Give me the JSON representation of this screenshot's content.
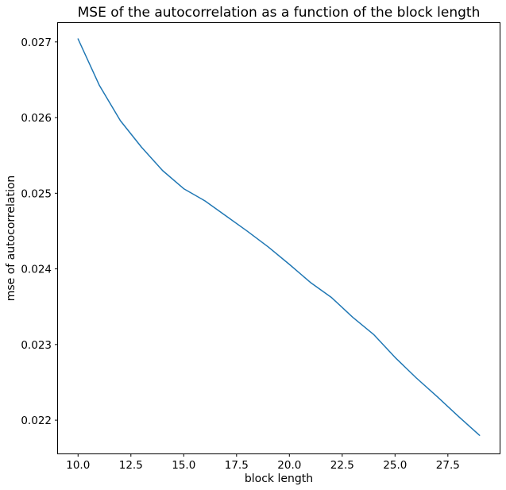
{
  "chart_data": {
    "type": "line",
    "title": "MSE of the autocorrelation as a function of the block length",
    "xlabel": "block length",
    "ylabel": "mse of autocorrelation",
    "xlim": [
      9.05,
      29.95
    ],
    "ylim": [
      0.02156,
      0.02725
    ],
    "grid": false,
    "x_ticks": [
      10.0,
      12.5,
      15.0,
      17.5,
      20.0,
      22.5,
      25.0,
      27.5
    ],
    "x_tick_labels": [
      "10.0",
      "12.5",
      "15.0",
      "17.5",
      "20.0",
      "22.5",
      "25.0",
      "27.5"
    ],
    "y_ticks": [
      0.022,
      0.023,
      0.024,
      0.025,
      0.026,
      0.027
    ],
    "y_tick_labels": [
      "0.022",
      "0.023",
      "0.024",
      "0.025",
      "0.026",
      "0.027"
    ],
    "series": [
      {
        "color": "#1f77b4",
        "x": [
          10,
          11,
          12,
          13,
          14,
          15,
          16,
          17,
          18,
          19,
          20,
          21,
          22,
          23,
          24,
          25,
          26,
          27,
          28,
          29
        ],
        "values": [
          0.02704,
          0.02643,
          0.02596,
          0.02561,
          0.0253,
          0.02506,
          0.0249,
          0.0247,
          0.0245,
          0.02429,
          0.02406,
          0.02382,
          0.02362,
          0.02336,
          0.02313,
          0.02283,
          0.02256,
          0.02231,
          0.02205,
          0.0218
        ]
      }
    ]
  }
}
